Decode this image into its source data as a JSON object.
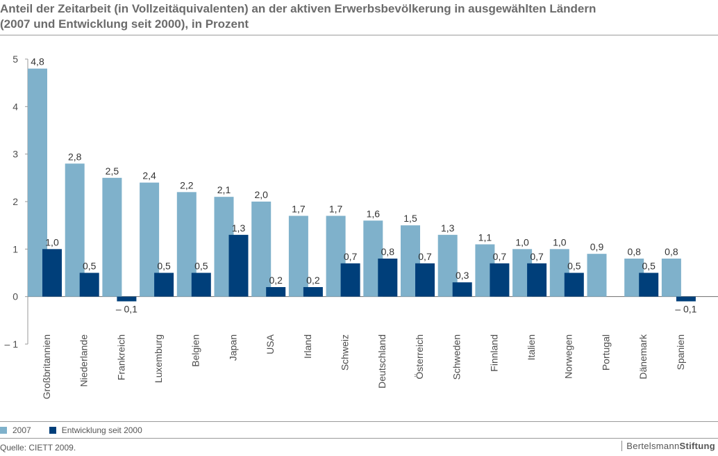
{
  "title_line1": "Anteil der Zeitarbeit (in Vollzeitäquivalenten) an der aktiven Erwerbsbevölkerung in ausgewählten Ländern",
  "title_line2": "(2007 und Entwicklung seit 2000), in Prozent",
  "source": "Quelle: CIETT 2009.",
  "brand_a": "Bertelsmann",
  "brand_b": "Stiftung",
  "colors": {
    "series_2007": "#7fb1cb",
    "series_change": "#003f7a",
    "axis": "#9a9a9a",
    "text": "#4d4d4d"
  },
  "chart_data": {
    "type": "bar",
    "categories": [
      "Großbritannien",
      "Niederlande",
      "Frankreich",
      "Luxemburg",
      "Belgien",
      "Japan",
      "USA",
      "Irland",
      "Schweiz",
      "Deutschland",
      "Österreich",
      "Schweden",
      "Finnland",
      "Italien",
      "Norwegen",
      "Portugal",
      "Dänemark",
      "Spanien"
    ],
    "series": [
      {
        "name": "2007",
        "values": [
          4.8,
          2.8,
          2.5,
          2.4,
          2.2,
          2.1,
          2.0,
          1.7,
          1.7,
          1.6,
          1.5,
          1.3,
          1.1,
          1.0,
          1.0,
          0.9,
          0.8,
          0.8
        ],
        "labels": [
          "4,8",
          "2,8",
          "2,5",
          "2,4",
          "2,2",
          "2,1",
          "2,0",
          "1,7",
          "1,7",
          "1,6",
          "1,5",
          "1,3",
          "1,1",
          "1,0",
          "1,0",
          "0,9",
          "0,8",
          "0,8"
        ]
      },
      {
        "name": "Entwicklung seit 2000",
        "values": [
          1.0,
          0.5,
          -0.1,
          0.5,
          0.5,
          1.3,
          0.2,
          0.2,
          0.7,
          0.8,
          0.7,
          0.3,
          0.7,
          0.7,
          0.5,
          null,
          0.5,
          -0.1
        ],
        "labels": [
          "1,0",
          "0,5",
          "– 0,1",
          "0,5",
          "0,5",
          "1,3",
          "0,2",
          "0,2",
          "0,7",
          "0,8",
          "0,7",
          "0,3",
          "0,7",
          "0,7",
          "0,5",
          "",
          "0,5",
          "– 0,1"
        ]
      }
    ],
    "ylim": [
      -1,
      5
    ],
    "yticks": [
      -1,
      0,
      1,
      2,
      3,
      4,
      5
    ],
    "ytick_labels": [
      "– 1",
      "0",
      "1",
      "2",
      "3",
      "4",
      "5"
    ],
    "legend_position": "bottom-left",
    "grid": false
  }
}
